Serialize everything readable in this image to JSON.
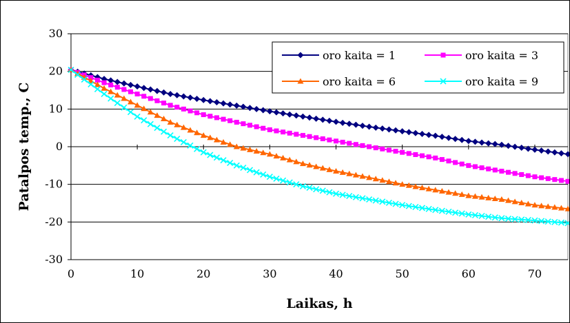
{
  "chart_data": {
    "type": "line",
    "title": "",
    "xlabel": "Laikas, h",
    "ylabel": "Patalpos temp., C",
    "xlim": [
      0,
      75
    ],
    "ylim": [
      -30,
      30
    ],
    "x_ticks": [
      0,
      10,
      20,
      30,
      40,
      50,
      60,
      70
    ],
    "y_ticks": [
      30,
      20,
      10,
      0,
      -10,
      -20,
      -30
    ],
    "grid": "horizontal major gridlines",
    "legend_position": "top-right",
    "series": [
      {
        "name": "oro kaita = 1",
        "color": "#000080",
        "marker": "diamond",
        "x": [
          0,
          5,
          10,
          15,
          20,
          25,
          30,
          35,
          40,
          45,
          50,
          55,
          60,
          65,
          70,
          75
        ],
        "y": [
          20.4,
          18.0,
          16.0,
          14.0,
          12.4,
          10.9,
          9.4,
          8.0,
          6.6,
          5.3,
          4.1,
          2.9,
          1.5,
          0.5,
          -0.8,
          -2.0
        ]
      },
      {
        "name": "oro kaita = 3",
        "color": "#FF00FF",
        "marker": "square",
        "x": [
          0,
          5,
          10,
          15,
          20,
          25,
          30,
          35,
          40,
          45,
          50,
          55,
          60,
          65,
          70,
          75
        ],
        "y": [
          20.4,
          17.0,
          14.0,
          11.0,
          8.5,
          6.5,
          4.5,
          3.0,
          1.5,
          0.0,
          -1.5,
          -3.0,
          -5.0,
          -6.5,
          -8.0,
          -9.2
        ]
      },
      {
        "name": "oro kaita = 6",
        "color": "#FF6600",
        "marker": "triangle",
        "x": [
          0,
          5,
          10,
          15,
          20,
          25,
          30,
          35,
          40,
          45,
          50,
          55,
          60,
          65,
          70,
          75
        ],
        "y": [
          20.4,
          15.5,
          11.0,
          6.5,
          3.0,
          0.0,
          -2.0,
          -4.5,
          -6.5,
          -8.2,
          -10.0,
          -11.5,
          -13.0,
          -14.0,
          -15.5,
          -16.5
        ]
      },
      {
        "name": "oro kaita = 9",
        "color": "#00FFFF",
        "marker": "x",
        "x": [
          0,
          5,
          10,
          15,
          20,
          25,
          30,
          35,
          40,
          45,
          50,
          55,
          60,
          65,
          70,
          75
        ],
        "y": [
          20.4,
          14.0,
          8.0,
          3.0,
          -1.5,
          -5.0,
          -8.0,
          -10.5,
          -12.5,
          -14.0,
          -15.5,
          -16.8,
          -18.0,
          -19.0,
          -19.6,
          -20.3
        ]
      }
    ]
  }
}
